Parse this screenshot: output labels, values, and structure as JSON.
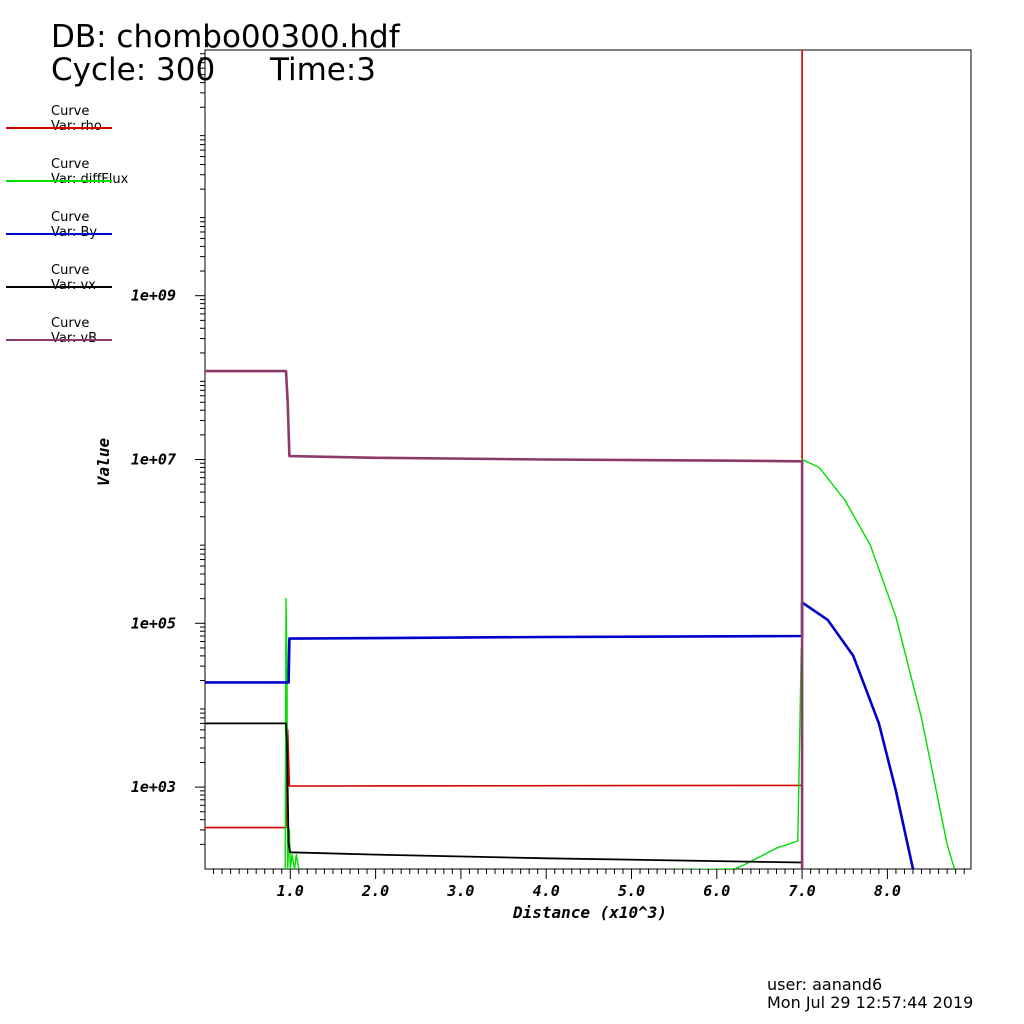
{
  "header": {
    "db": "DB: chombo00300.hdf",
    "cycle": "Cycle: 300",
    "time": "Time:3"
  },
  "legend": [
    {
      "kind": "Curve",
      "var": "Var: rho",
      "color": "#d00000"
    },
    {
      "kind": "Curve",
      "var": "Var: diffFlux",
      "color": "#00dd00"
    },
    {
      "kind": "Curve",
      "var": "Var: By",
      "color": "#0000cc"
    },
    {
      "kind": "Curve",
      "var": "Var: vx",
      "color": "#000000"
    },
    {
      "kind": "Curve",
      "var": "Var: vB",
      "color": "#8b3a6b"
    }
  ],
  "footer": {
    "user": "user: aanand6",
    "date": "Mon Jul 29 12:57:44 2019"
  },
  "chart_data": {
    "type": "line",
    "xlabel": "Distance (x10^3)",
    "ylabel": "Value",
    "xscale": "linear",
    "yscale": "log",
    "xlim": [
      0.0,
      8.98
    ],
    "ylim": [
      100,
      1000000000000
    ],
    "xticks": [
      {
        "v": 1.0,
        "label": "1.0"
      },
      {
        "v": 2.0,
        "label": "2.0"
      },
      {
        "v": 3.0,
        "label": "3.0"
      },
      {
        "v": 4.0,
        "label": "4.0"
      },
      {
        "v": 5.0,
        "label": "5.0"
      },
      {
        "v": 6.0,
        "label": "6.0"
      },
      {
        "v": 7.0,
        "label": "7.0"
      },
      {
        "v": 8.0,
        "label": "8.0"
      }
    ],
    "yticks": [
      {
        "v": 1000,
        "label": "1e+03"
      },
      {
        "v": 100000,
        "label": "1e+05"
      },
      {
        "v": 10000000,
        "label": "1e+07"
      },
      {
        "v": 1000000000,
        "label": "1e+09"
      }
    ],
    "series": [
      {
        "name": "rho",
        "color": "#d00000",
        "x": [
          0.0,
          0.95,
          0.97,
          0.99,
          7.0,
          7.0,
          7.0
        ],
        "y": [
          320,
          320,
          5000,
          1030,
          1050,
          100,
          1000000000000
        ]
      },
      {
        "name": "diffFlux",
        "color": "#00dd00",
        "x": [
          0.94,
          0.95,
          0.96,
          0.97,
          0.99,
          1.0,
          1.02,
          1.05,
          1.07,
          1.1,
          1.12,
          6.2,
          6.3,
          6.5,
          6.7,
          6.95,
          6.99,
          7.0,
          7.0,
          7.0,
          7.2,
          7.5,
          7.8,
          8.1,
          8.4,
          8.7,
          8.8
        ],
        "y": [
          100,
          200000,
          40000,
          100,
          300,
          100,
          150,
          100,
          150,
          100,
          90,
          100,
          110,
          140,
          180,
          220,
          50000,
          200,
          10000000,
          10000000,
          8000000,
          3200000,
          900000,
          120000,
          7000,
          200,
          90
        ]
      },
      {
        "name": "By",
        "color": "#0000cc",
        "x": [
          0.0,
          0.95,
          0.98,
          0.99,
          4.0,
          7.0,
          7.0,
          7.0,
          7.3,
          7.6,
          7.9,
          8.1,
          8.3
        ],
        "y": [
          19000,
          19000,
          19000,
          65000,
          68000,
          70000,
          70000,
          180000,
          110000,
          40000,
          6000,
          900,
          100
        ]
      },
      {
        "name": "vx",
        "color": "#000000",
        "x": [
          0.0,
          0.95,
          0.96,
          0.98,
          1.0,
          2.0,
          4.0,
          6.0,
          7.0
        ],
        "y": [
          6000,
          6000,
          3500,
          200,
          160,
          150,
          135,
          125,
          120
        ]
      },
      {
        "name": "vB",
        "color": "#8b3a6b",
        "x": [
          0.0,
          0.95,
          0.97,
          0.99,
          2.0,
          4.0,
          6.0,
          6.99,
          7.0,
          7.0,
          7.0
        ],
        "y": [
          120000000,
          120000000,
          50000000,
          11000000,
          10500000,
          10000000,
          9700000,
          9500000,
          9500000,
          2500000,
          100
        ]
      }
    ]
  }
}
